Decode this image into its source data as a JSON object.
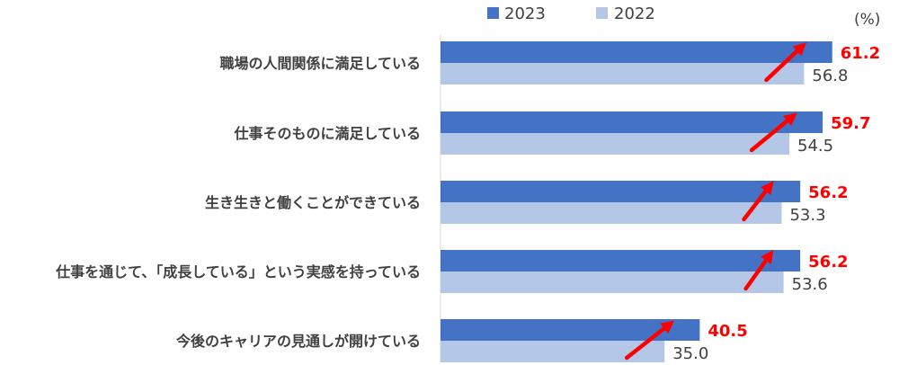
{
  "chart_data": {
    "type": "bar",
    "orientation": "horizontal",
    "unit": "(%)",
    "categories": [
      "職場の人間関係に満足している",
      "仕事そのものに満足している",
      "生き生きと働くことができている",
      "仕事を通じて、「成長している」という実感を持っている",
      "今後のキャリアの見通しが開けている"
    ],
    "series": [
      {
        "name": "2023",
        "values": [
          61.2,
          59.7,
          56.2,
          56.2,
          40.5
        ],
        "color": "#4472c4"
      },
      {
        "name": "2022",
        "values": [
          56.8,
          54.5,
          53.3,
          53.6,
          35.0
        ],
        "color": "#b4c7e7"
      }
    ],
    "value_labels": {
      "2023": [
        "61.2",
        "59.7",
        "56.2",
        "56.2",
        "40.5"
      ],
      "2022": [
        "56.8",
        "54.5",
        "53.3",
        "53.6",
        "35.0"
      ]
    },
    "xlim": [
      0,
      80
    ],
    "legend_position": "top",
    "grid": false,
    "annotation_color": "#ff0000",
    "annotation_icon": "up-right-arrow-icon"
  }
}
